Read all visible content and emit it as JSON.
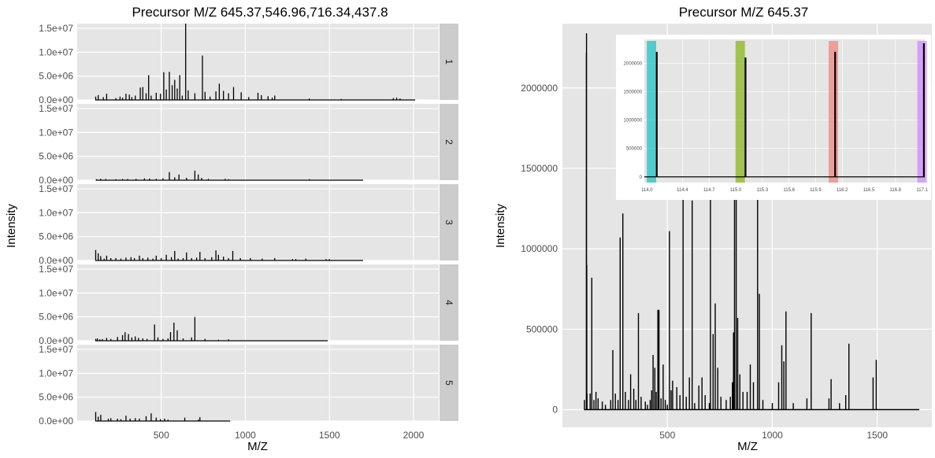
{
  "chart_data": [
    {
      "type": "line",
      "title": "Precursor M/Z 645.37,546.96,716.34,437.8",
      "xlabel": "M/Z",
      "ylabel": "Intensity",
      "xlim": [
        0,
        2150
      ],
      "ylim": [
        0,
        16000000
      ],
      "x_ticks": [
        500,
        1000,
        1500,
        2000
      ],
      "x_tick_labels": [
        "500",
        "1000",
        "1500",
        "2000"
      ],
      "y_ticks": [
        0,
        5000000,
        10000000,
        15000000
      ],
      "y_tick_labels": [
        "0.0e+00",
        "5.0e+06",
        "1.0e+07",
        "1.5e+07"
      ],
      "grid": true,
      "facets": [
        {
          "label": "1",
          "x_end": 2010,
          "peaks": [
            [
              110,
              700000
            ],
            [
              125,
              1000000
            ],
            [
              155,
              600000
            ],
            [
              175,
              1300000
            ],
            [
              230,
              400000
            ],
            [
              255,
              700000
            ],
            [
              270,
              500000
            ],
            [
              290,
              1300000
            ],
            [
              310,
              1100000
            ],
            [
              325,
              600000
            ],
            [
              345,
              900000
            ],
            [
              375,
              2600000
            ],
            [
              390,
              2700000
            ],
            [
              410,
              1400000
            ],
            [
              425,
              5200000
            ],
            [
              440,
              900000
            ],
            [
              470,
              1500000
            ],
            [
              495,
              1300000
            ],
            [
              515,
              5800000
            ],
            [
              530,
              2200000
            ],
            [
              548,
              5900000
            ],
            [
              565,
              3100000
            ],
            [
              580,
              4200000
            ],
            [
              595,
              2400000
            ],
            [
              610,
              5200000
            ],
            [
              625,
              900000
            ],
            [
              645,
              16000000
            ],
            [
              660,
              2000000
            ],
            [
              700,
              1400000
            ],
            [
              745,
              9300000
            ],
            [
              760,
              1700000
            ],
            [
              790,
              700000
            ],
            [
              825,
              1800000
            ],
            [
              845,
              3400000
            ],
            [
              870,
              1900000
            ],
            [
              900,
              1400000
            ],
            [
              930,
              2700000
            ],
            [
              975,
              1600000
            ],
            [
              1020,
              600000
            ],
            [
              1075,
              1500000
            ],
            [
              1095,
              1000000
            ],
            [
              1135,
              800000
            ],
            [
              1160,
              500000
            ],
            [
              1175,
              900000
            ],
            [
              1380,
              300000
            ],
            [
              1570,
              200000
            ],
            [
              1880,
              400000
            ],
            [
              1900,
              500000
            ],
            [
              1920,
              300000
            ]
          ]
        },
        {
          "label": "2",
          "x_end": 1700,
          "peaks": [
            [
              115,
              200000
            ],
            [
              140,
              300000
            ],
            [
              170,
              250000
            ],
            [
              230,
              200000
            ],
            [
              270,
              250000
            ],
            [
              300,
              250000
            ],
            [
              350,
              300000
            ],
            [
              400,
              400000
            ],
            [
              430,
              350000
            ],
            [
              470,
              300000
            ],
            [
              510,
              400000
            ],
            [
              548,
              1700000
            ],
            [
              580,
              600000
            ],
            [
              605,
              1200000
            ],
            [
              650,
              500000
            ],
            [
              700,
              2000000
            ],
            [
              720,
              1200000
            ],
            [
              740,
              500000
            ],
            [
              780,
              300000
            ],
            [
              880,
              300000
            ],
            [
              900,
              200000
            ],
            [
              1380,
              200000
            ]
          ]
        },
        {
          "label": "3",
          "x_end": 1700,
          "peaks": [
            [
              110,
              2200000
            ],
            [
              125,
              1500000
            ],
            [
              140,
              900000
            ],
            [
              160,
              400000
            ],
            [
              175,
              1000000
            ],
            [
              200,
              500000
            ],
            [
              230,
              500000
            ],
            [
              260,
              400000
            ],
            [
              290,
              600000
            ],
            [
              320,
              700000
            ],
            [
              340,
              500000
            ],
            [
              370,
              1000000
            ],
            [
              390,
              500000
            ],
            [
              420,
              600000
            ],
            [
              450,
              400000
            ],
            [
              470,
              1000000
            ],
            [
              500,
              500000
            ],
            [
              530,
              1200000
            ],
            [
              560,
              700000
            ],
            [
              580,
              2000000
            ],
            [
              600,
              400000
            ],
            [
              630,
              500000
            ],
            [
              650,
              1700000
            ],
            [
              680,
              500000
            ],
            [
              710,
              600000
            ],
            [
              730,
              1800000
            ],
            [
              760,
              500000
            ],
            [
              800,
              700000
            ],
            [
              825,
              2100000
            ],
            [
              840,
              1200000
            ],
            [
              870,
              800000
            ],
            [
              900,
              500000
            ],
            [
              925,
              2000000
            ],
            [
              970,
              500000
            ],
            [
              1030,
              500000
            ],
            [
              1100,
              400000
            ],
            [
              1175,
              500000
            ],
            [
              1280,
              300000
            ],
            [
              1300,
              300000
            ],
            [
              1360,
              400000
            ],
            [
              1480,
              300000
            ],
            [
              1500,
              300000
            ]
          ]
        },
        {
          "label": "4",
          "x_end": 1490,
          "peaks": [
            [
              110,
              400000
            ],
            [
              120,
              500000
            ],
            [
              135,
              300000
            ],
            [
              150,
              350000
            ],
            [
              175,
              600000
            ],
            [
              200,
              400000
            ],
            [
              240,
              800000
            ],
            [
              270,
              1200000
            ],
            [
              285,
              1800000
            ],
            [
              305,
              1400000
            ],
            [
              325,
              700000
            ],
            [
              345,
              900000
            ],
            [
              365,
              600000
            ],
            [
              390,
              500000
            ],
            [
              415,
              400000
            ],
            [
              460,
              3400000
            ],
            [
              480,
              700000
            ],
            [
              510,
              400000
            ],
            [
              540,
              500000
            ],
            [
              555,
              1800000
            ],
            [
              575,
              3800000
            ],
            [
              595,
              2200000
            ],
            [
              630,
              500000
            ],
            [
              680,
              700000
            ],
            [
              700,
              5000000
            ],
            [
              760,
              400000
            ],
            [
              840,
              200000
            ],
            [
              900,
              300000
            ],
            [
              1000,
              100000
            ]
          ]
        },
        {
          "label": "5",
          "x_end": 910,
          "peaks": [
            [
              110,
              1900000
            ],
            [
              125,
              900000
            ],
            [
              140,
              1300000
            ],
            [
              185,
              500000
            ],
            [
              200,
              600000
            ],
            [
              240,
              500000
            ],
            [
              260,
              400000
            ],
            [
              290,
              1100000
            ],
            [
              315,
              500000
            ],
            [
              345,
              600000
            ],
            [
              370,
              500000
            ],
            [
              410,
              1000000
            ],
            [
              440,
              1600000
            ],
            [
              470,
              700000
            ],
            [
              495,
              400000
            ],
            [
              520,
              500000
            ],
            [
              540,
              300000
            ],
            [
              640,
              700000
            ],
            [
              720,
              300000
            ],
            [
              730,
              800000
            ]
          ]
        }
      ]
    },
    {
      "type": "line",
      "title": "Precursor M/Z 645.37",
      "xlabel": "M/Z",
      "ylabel": "Intensity",
      "xlim": [
        0,
        1760
      ],
      "ylim": [
        -110000,
        2400000
      ],
      "x_ticks": [
        500,
        1000,
        1500
      ],
      "x_tick_labels": [
        "500",
        "1000",
        "1500"
      ],
      "y_ticks": [
        0,
        500000,
        1000000,
        1500000,
        2000000
      ],
      "y_tick_labels": [
        "0",
        "500000",
        "1000000",
        "1500000",
        "2000000"
      ],
      "x_end": 1700,
      "grid": true,
      "peaks": [
        [
          105,
          60000
        ],
        [
          114,
          2220000
        ],
        [
          115,
          2340000
        ],
        [
          116,
          900000
        ],
        [
          117,
          100000
        ],
        [
          132,
          100000
        ],
        [
          140,
          820000
        ],
        [
          150,
          60000
        ],
        [
          160,
          110000
        ],
        [
          170,
          70000
        ],
        [
          190,
          50000
        ],
        [
          205,
          30000
        ],
        [
          230,
          60000
        ],
        [
          240,
          370000
        ],
        [
          252,
          100000
        ],
        [
          265,
          60000
        ],
        [
          275,
          1070000
        ],
        [
          288,
          1220000
        ],
        [
          300,
          110000
        ],
        [
          315,
          60000
        ],
        [
          325,
          220000
        ],
        [
          340,
          130000
        ],
        [
          350,
          60000
        ],
        [
          362,
          600000
        ],
        [
          375,
          80000
        ],
        [
          395,
          50000
        ],
        [
          405,
          30000
        ],
        [
          418,
          60000
        ],
        [
          425,
          120000
        ],
        [
          432,
          340000
        ],
        [
          440,
          260000
        ],
        [
          447,
          110000
        ],
        [
          455,
          620000
        ],
        [
          460,
          620000
        ],
        [
          470,
          70000
        ],
        [
          480,
          280000
        ],
        [
          490,
          60000
        ],
        [
          500,
          30000
        ],
        [
          510,
          1110000
        ],
        [
          518,
          120000
        ],
        [
          525,
          180000
        ],
        [
          545,
          140000
        ],
        [
          560,
          90000
        ],
        [
          575,
          1400000
        ],
        [
          590,
          80000
        ],
        [
          605,
          200000
        ],
        [
          618,
          1300000
        ],
        [
          630,
          40000
        ],
        [
          650,
          150000
        ],
        [
          665,
          200000
        ],
        [
          680,
          90000
        ],
        [
          700,
          40000
        ],
        [
          705,
          1400000
        ],
        [
          718,
          470000
        ],
        [
          728,
          660000
        ],
        [
          740,
          260000
        ],
        [
          755,
          80000
        ],
        [
          780,
          60000
        ],
        [
          800,
          80000
        ],
        [
          810,
          170000
        ],
        [
          815,
          480000
        ],
        [
          820,
          1400000
        ],
        [
          828,
          1360000
        ],
        [
          835,
          570000
        ],
        [
          845,
          220000
        ],
        [
          860,
          110000
        ],
        [
          880,
          110000
        ],
        [
          895,
          280000
        ],
        [
          910,
          170000
        ],
        [
          930,
          1380000
        ],
        [
          938,
          720000
        ],
        [
          955,
          60000
        ],
        [
          1000,
          40000
        ],
        [
          1030,
          170000
        ],
        [
          1045,
          400000
        ],
        [
          1055,
          300000
        ],
        [
          1065,
          610000
        ],
        [
          1100,
          40000
        ],
        [
          1165,
          70000
        ],
        [
          1185,
          600000
        ],
        [
          1270,
          70000
        ],
        [
          1280,
          190000
        ],
        [
          1320,
          40000
        ],
        [
          1350,
          90000
        ],
        [
          1365,
          410000
        ],
        [
          1480,
          200000
        ],
        [
          1495,
          310000
        ]
      ],
      "inset": {
        "xlim": [
          113.97,
          117.13
        ],
        "ylim": [
          -100000,
          2420000
        ],
        "x_ticks": [
          114.0,
          114.4,
          114.7,
          115.0,
          115.3,
          115.6,
          115.9,
          116.2,
          116.5,
          116.8,
          117.1
        ],
        "x_tick_labels": [
          "114.0",
          "114.4",
          "114.7",
          "115.0",
          "115.3",
          "115.6",
          "115.9",
          "116.2",
          "116.5",
          "116.8",
          "117.1"
        ],
        "y_ticks": [
          0,
          500000,
          1000000,
          1500000,
          2000000
        ],
        "y_tick_labels": [
          "0",
          "500000",
          "1000000",
          "1500000",
          "2000000"
        ],
        "bands": [
          {
            "x": 114.05,
            "color": "#00bfc4"
          },
          {
            "x": 115.05,
            "color": "#7cae00"
          },
          {
            "x": 116.1,
            "color": "#f8766d"
          },
          {
            "x": 117.1,
            "color": "#c77cff"
          }
        ],
        "peaks": [
          [
            114.11,
            2200000
          ],
          [
            115.11,
            2100000
          ],
          [
            116.12,
            2200000
          ],
          [
            117.12,
            2350000
          ]
        ]
      }
    }
  ]
}
